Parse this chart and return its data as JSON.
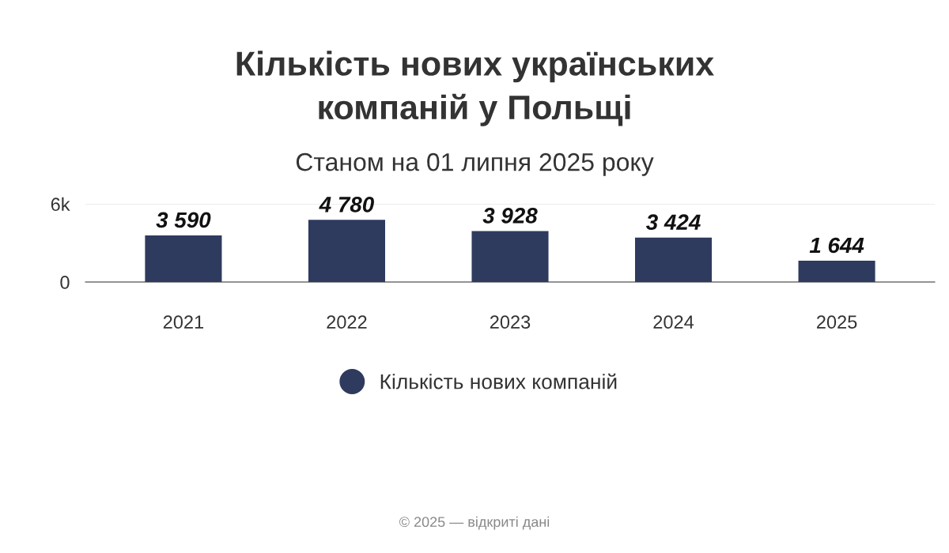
{
  "chart_data": {
    "type": "bar",
    "title": "Кількість нових українських\nкомпаній у Польщі",
    "subtitle": "Станом на 01 липня 2025 року",
    "categories": [
      "2021",
      "2022",
      "2023",
      "2024",
      "2025"
    ],
    "series": [
      {
        "name": "Кількість нових компаній",
        "color": "#2e3b5e",
        "values": [
          3590,
          4780,
          3928,
          3424,
          1644
        ],
        "value_labels": [
          "3 590",
          "4 780",
          "3 928",
          "3 424",
          "1 644"
        ]
      }
    ],
    "ylim": [
      0,
      6000
    ],
    "yticks": [
      0,
      {
        "value": 6000,
        "label": "6k"
      }
    ],
    "grid": "y",
    "legend": "bottom",
    "annotations": [
      "© 2025 — відкриті дані"
    ]
  }
}
